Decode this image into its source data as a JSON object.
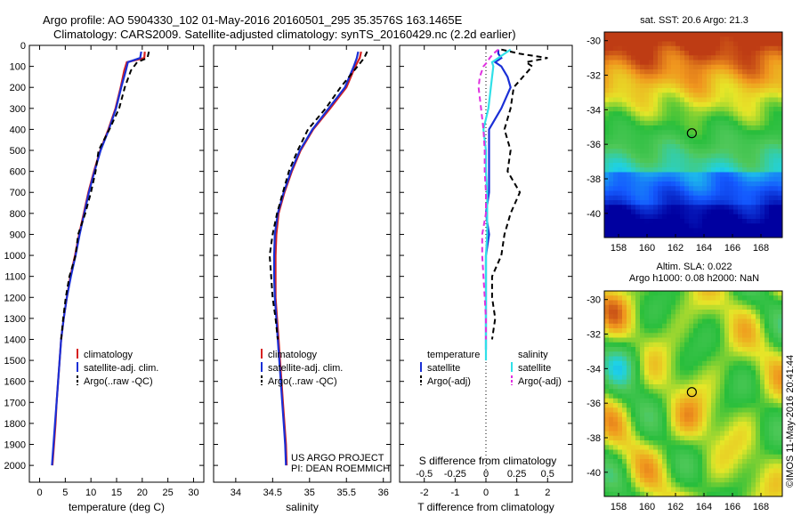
{
  "header": {
    "line1": "Argo profile: AO 5904330_102 01-May-2016 20160501_295 35.3576S 163.1465E",
    "line2": "Climatology: CARS2009. Satellite-adjusted climatology: synTS_20160429.nc (2.2d earlier)"
  },
  "side_stamp": "©IMOS 11-May-2016 20:41:44",
  "project_note": {
    "line1": "US ARGO PROJECT",
    "line2": "PI: DEAN ROEMMICH"
  },
  "colors": {
    "climatology": "#d62020",
    "satellite": "#1a2fd6",
    "argo": "#000000",
    "satellite_s": "#30e0e8",
    "argo_s": "#e030e0"
  },
  "chart_data": [
    {
      "type": "line",
      "id": "temperature-profile",
      "xlabel": "temperature (deg C)",
      "xlim": [
        -2,
        32
      ],
      "xticks": [
        0,
        5,
        10,
        15,
        20,
        25,
        30
      ],
      "ylim": [
        0,
        2080
      ],
      "yticks": [
        0,
        100,
        200,
        300,
        400,
        500,
        600,
        700,
        800,
        900,
        1000,
        1100,
        1200,
        1300,
        1400,
        1500,
        1600,
        1700,
        1800,
        1900,
        2000
      ],
      "legend": {
        "placement": "lower-center",
        "entries": [
          "climatology",
          "satellite-adj. clim.",
          "Argo(..raw -QC)"
        ]
      },
      "series": [
        {
          "name": "climatology",
          "style": "solid",
          "color": "#d62020",
          "points": [
            [
              20.5,
              30
            ],
            [
              20.4,
              60
            ],
            [
              17,
              80
            ],
            [
              16.5,
              120
            ],
            [
              15.8,
              200
            ],
            [
              14.8,
              300
            ],
            [
              13.4,
              400
            ],
            [
              11.8,
              500
            ],
            [
              10.6,
              600
            ],
            [
              9.5,
              700
            ],
            [
              8.6,
              800
            ],
            [
              7.7,
              900
            ],
            [
              6.9,
              1000
            ],
            [
              6.0,
              1100
            ],
            [
              5.3,
              1200
            ],
            [
              4.7,
              1300
            ],
            [
              4.2,
              1400
            ],
            [
              3.9,
              1500
            ],
            [
              3.6,
              1600
            ],
            [
              3.3,
              1700
            ],
            [
              3.1,
              1800
            ],
            [
              2.8,
              1900
            ],
            [
              2.5,
              2000
            ]
          ]
        },
        {
          "name": "satellite-adj. clim.",
          "style": "solid",
          "color": "#1a2fd6",
          "points": [
            [
              19.8,
              30
            ],
            [
              19.6,
              60
            ],
            [
              17.2,
              80
            ],
            [
              16.8,
              120
            ],
            [
              15.9,
              200
            ],
            [
              14.9,
              300
            ],
            [
              13.5,
              400
            ],
            [
              11.9,
              500
            ],
            [
              10.7,
              600
            ],
            [
              9.6,
              700
            ],
            [
              8.7,
              800
            ],
            [
              7.8,
              900
            ],
            [
              7.0,
              1000
            ],
            [
              6.1,
              1100
            ],
            [
              5.3,
              1200
            ],
            [
              4.7,
              1300
            ],
            [
              4.2,
              1400
            ],
            [
              3.9,
              1500
            ],
            [
              3.6,
              1600
            ],
            [
              3.3,
              1700
            ],
            [
              3.0,
              1800
            ],
            [
              2.7,
              1900
            ],
            [
              2.4,
              2000
            ]
          ]
        },
        {
          "name": "Argo(..raw -QC)",
          "style": "dashed",
          "color": "#000000",
          "points": [
            [
              21.3,
              30
            ],
            [
              21.0,
              60
            ],
            [
              19.0,
              80
            ],
            [
              17.8,
              120
            ],
            [
              16.6,
              200
            ],
            [
              15.5,
              300
            ],
            [
              13.6,
              400
            ],
            [
              11.5,
              500
            ],
            [
              10.9,
              600
            ],
            [
              10.0,
              700
            ],
            [
              8.9,
              800
            ],
            [
              7.5,
              900
            ],
            [
              7.0,
              1000
            ],
            [
              5.8,
              1100
            ],
            [
              5.1,
              1200
            ],
            [
              4.6,
              1300
            ],
            [
              4.2,
              1400
            ]
          ]
        }
      ]
    },
    {
      "type": "line",
      "id": "salinity-profile",
      "xlabel": "salinity",
      "xlim": [
        33.7,
        36.1
      ],
      "xticks": [
        34,
        34.5,
        35,
        35.5,
        36
      ],
      "ylim": [
        0,
        2080
      ],
      "legend": {
        "placement": "lower-center",
        "entries": [
          "climatology",
          "satellite-adj. clim.",
          "Argo(..raw -QC)"
        ]
      },
      "series": [
        {
          "name": "climatology",
          "style": "solid",
          "color": "#d62020",
          "points": [
            [
              35.7,
              30
            ],
            [
              35.68,
              60
            ],
            [
              35.62,
              100
            ],
            [
              35.5,
              200
            ],
            [
              35.28,
              300
            ],
            [
              35.05,
              400
            ],
            [
              34.88,
              500
            ],
            [
              34.76,
              600
            ],
            [
              34.66,
              700
            ],
            [
              34.58,
              800
            ],
            [
              34.55,
              900
            ],
            [
              34.54,
              1000
            ],
            [
              34.54,
              1100
            ],
            [
              34.54,
              1200
            ],
            [
              34.56,
              1300
            ],
            [
              34.58,
              1400
            ],
            [
              34.6,
              1500
            ],
            [
              34.62,
              1600
            ],
            [
              34.64,
              1700
            ],
            [
              34.66,
              1800
            ],
            [
              34.68,
              1900
            ],
            [
              34.69,
              2000
            ]
          ]
        },
        {
          "name": "satellite-adj. clim.",
          "style": "solid",
          "color": "#1a2fd6",
          "points": [
            [
              35.66,
              30
            ],
            [
              35.64,
              60
            ],
            [
              35.6,
              100
            ],
            [
              35.48,
              200
            ],
            [
              35.26,
              300
            ],
            [
              35.04,
              400
            ],
            [
              34.87,
              500
            ],
            [
              34.75,
              600
            ],
            [
              34.65,
              700
            ],
            [
              34.57,
              800
            ],
            [
              34.53,
              900
            ],
            [
              34.52,
              1000
            ],
            [
              34.52,
              1100
            ],
            [
              34.53,
              1200
            ],
            [
              34.55,
              1300
            ],
            [
              34.57,
              1400
            ],
            [
              34.59,
              1500
            ],
            [
              34.61,
              1600
            ],
            [
              34.63,
              1700
            ],
            [
              34.65,
              1800
            ],
            [
              34.67,
              1900
            ],
            [
              34.68,
              2000
            ]
          ]
        },
        {
          "name": "Argo(..raw -QC)",
          "style": "dashed",
          "color": "#000000",
          "points": [
            [
              35.78,
              30
            ],
            [
              35.74,
              60
            ],
            [
              35.65,
              100
            ],
            [
              35.42,
              200
            ],
            [
              35.22,
              300
            ],
            [
              34.98,
              400
            ],
            [
              34.84,
              500
            ],
            [
              34.72,
              600
            ],
            [
              34.64,
              700
            ],
            [
              34.56,
              800
            ],
            [
              34.5,
              900
            ],
            [
              34.46,
              1000
            ],
            [
              34.48,
              1100
            ],
            [
              34.5,
              1200
            ],
            [
              34.54,
              1300
            ],
            [
              34.57,
              1400
            ]
          ]
        }
      ]
    },
    {
      "type": "line",
      "id": "difference-profile",
      "xlabel": "T difference from climatology",
      "xlabel_top": "S difference from climatology",
      "xlim": [
        -2.8,
        2.8
      ],
      "xticks": [
        -2,
        -1,
        0,
        1,
        2
      ],
      "xticks_secondary": [
        -0.5,
        -0.25,
        0,
        0.25,
        0.5
      ],
      "xtick_labels_secondary": [
        "-0.5",
        "-0.25",
        "0",
        "0.25",
        "0.5"
      ],
      "ylim": [
        0,
        2080
      ],
      "legend": {
        "placement": "lower-center",
        "temperature_heading": "temperature",
        "salinity_heading": "salinity",
        "entries": [
          "satellite",
          "Argo(-adj)",
          "satellite",
          "Argo(-adj)"
        ]
      },
      "series": [
        {
          "name": "temperature satellite",
          "style": "solid",
          "color": "#1a2fd6",
          "points": [
            [
              0.4,
              20
            ],
            [
              0.4,
              40
            ],
            [
              0.5,
              60
            ],
            [
              0.3,
              80
            ],
            [
              0.5,
              100
            ],
            [
              0.7,
              150
            ],
            [
              0.8,
              200
            ],
            [
              0.5,
              300
            ],
            [
              0.1,
              400
            ],
            [
              0.1,
              500
            ],
            [
              0.1,
              600
            ],
            [
              0.1,
              700
            ],
            [
              0.0,
              800
            ],
            [
              0.1,
              900
            ],
            [
              0.0,
              1000
            ],
            [
              0.0,
              1100
            ],
            [
              0.0,
              1200
            ],
            [
              0.0,
              1300
            ],
            [
              0.0,
              1400
            ],
            [
              0.0,
              1450
            ]
          ]
        },
        {
          "name": "temperature Argo(-adj)",
          "style": "dashed",
          "color": "#000000",
          "points": [
            [
              0.5,
              20
            ],
            [
              1.1,
              40
            ],
            [
              2.0,
              60
            ],
            [
              1.3,
              80
            ],
            [
              1.5,
              100
            ],
            [
              1.2,
              150
            ],
            [
              0.9,
              200
            ],
            [
              0.8,
              300
            ],
            [
              0.6,
              400
            ],
            [
              0.8,
              500
            ],
            [
              0.7,
              600
            ],
            [
              1.1,
              700
            ],
            [
              0.8,
              800
            ],
            [
              0.6,
              900
            ],
            [
              0.5,
              1000
            ],
            [
              0.2,
              1100
            ],
            [
              0.2,
              1200
            ],
            [
              0.3,
              1300
            ],
            [
              0.2,
              1400
            ]
          ]
        },
        {
          "name": "salinity satellite",
          "style": "solid",
          "color": "#30e0e8",
          "points": [
            [
              0.2,
              20
            ],
            [
              0.15,
              40
            ],
            [
              0.1,
              60
            ],
            [
              0.05,
              80
            ],
            [
              0.06,
              100
            ],
            [
              0.05,
              150
            ],
            [
              0.04,
              200
            ],
            [
              0.02,
              300
            ],
            [
              -0.02,
              400
            ],
            [
              0.0,
              500
            ],
            [
              0.0,
              600
            ],
            [
              0.01,
              700
            ],
            [
              0.01,
              800
            ],
            [
              0.01,
              900
            ],
            [
              0.0,
              1000
            ],
            [
              0.0,
              1100
            ],
            [
              0.0,
              1200
            ],
            [
              0.0,
              1300
            ],
            [
              0.0,
              1400
            ],
            [
              0.0,
              1500
            ]
          ]
        },
        {
          "name": "salinity Argo(-adj)",
          "style": "dashed",
          "color": "#e030e0",
          "points": [
            [
              0.1,
              20
            ],
            [
              0.06,
              40
            ],
            [
              0.03,
              60
            ],
            [
              0.01,
              80
            ],
            [
              -0.02,
              100
            ],
            [
              -0.05,
              150
            ],
            [
              -0.06,
              200
            ],
            [
              -0.04,
              300
            ],
            [
              -0.02,
              400
            ],
            [
              -0.01,
              500
            ],
            [
              -0.01,
              600
            ],
            [
              0.0,
              700
            ],
            [
              0.0,
              800
            ],
            [
              -0.03,
              900
            ],
            [
              -0.03,
              1000
            ],
            [
              -0.02,
              1100
            ],
            [
              -0.01,
              1200
            ],
            [
              0.0,
              1300
            ],
            [
              0.0,
              1400
            ]
          ]
        }
      ]
    },
    {
      "type": "heatmap",
      "id": "sst-map",
      "title": "sat. SST: 20.6 Argo: 21.3",
      "xlim": [
        157,
        169.5
      ],
      "ylim": [
        -41.4,
        -29.5
      ],
      "xticks": [
        158,
        160,
        162,
        164,
        166,
        168
      ],
      "yticks": [
        -30,
        -32,
        -34,
        -36,
        -38,
        -40
      ],
      "marker": {
        "lon": 163.1465,
        "lat": -35.3576
      },
      "field": "sst"
    },
    {
      "type": "heatmap",
      "id": "sla-map",
      "title": "Altim. SLA: 0.022",
      "subtitle": "Argo h1000: 0.08 h2000: NaN",
      "xlim": [
        157,
        169.5
      ],
      "ylim": [
        -41.4,
        -29.5
      ],
      "xticks": [
        158,
        160,
        162,
        164,
        166,
        168
      ],
      "yticks": [
        -30,
        -32,
        -34,
        -36,
        -38,
        -40
      ],
      "marker": {
        "lon": 163.1465,
        "lat": -35.3576
      },
      "field": "sla"
    }
  ]
}
